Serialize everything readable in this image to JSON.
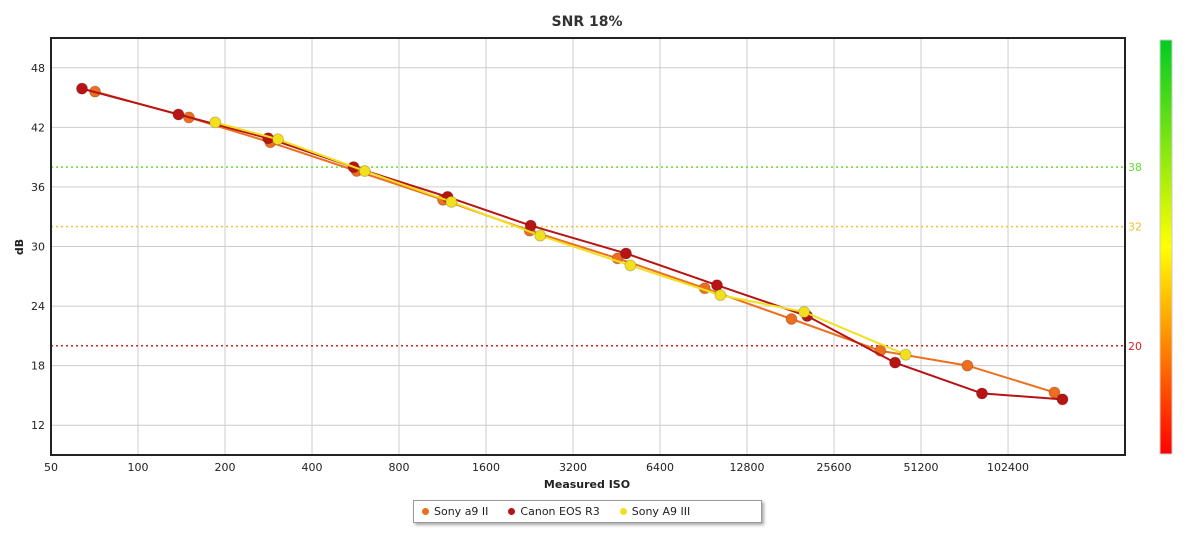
{
  "chart_data": {
    "type": "line",
    "title": "SNR 18%",
    "xlabel": "Measured ISO",
    "ylabel": "dB",
    "x_scale": "log2",
    "xlim": [
      50,
      260000
    ],
    "ylim": [
      9,
      51
    ],
    "x_ticks": [
      50,
      100,
      200,
      400,
      800,
      1600,
      3200,
      6400,
      12800,
      25600,
      51200,
      102400
    ],
    "x_tick_labels": [
      "50",
      "100",
      "200",
      "400",
      "800",
      "1600",
      "3200",
      "6400",
      "12800",
      "25600",
      "51200",
      "102400"
    ],
    "y_ticks": [
      12,
      18,
      24,
      30,
      36,
      42,
      48
    ],
    "y_tick_labels": [
      "12",
      "18",
      "24",
      "30",
      "36",
      "42",
      "48"
    ],
    "grid": true,
    "legend_position": "bottom-center",
    "reference_lines": [
      {
        "value": 38,
        "label": "38",
        "color": "#66dd33"
      },
      {
        "value": 32,
        "label": "32",
        "color": "#f0c030"
      },
      {
        "value": 20,
        "label": "20",
        "color": "#dd2222"
      }
    ],
    "color_scale": [
      "#00cc22",
      "#ffff00",
      "#ff0000"
    ],
    "series": [
      {
        "name": "Sony a9 II",
        "color": "#ec6f1f",
        "points": [
          [
            71,
            45.6
          ],
          [
            150,
            43.0
          ],
          [
            287,
            40.5
          ],
          [
            571,
            37.6
          ],
          [
            1136,
            34.7
          ],
          [
            2265,
            31.6
          ],
          [
            4563,
            28.8
          ],
          [
            9136,
            25.8
          ],
          [
            18238,
            22.7
          ],
          [
            37017,
            19.5
          ],
          [
            74062,
            18.0
          ],
          [
            148200,
            15.3
          ]
        ]
      },
      {
        "name": "Canon EOS R3",
        "color": "#b81414",
        "points": [
          [
            64,
            45.9
          ],
          [
            138,
            43.3
          ],
          [
            282,
            40.9
          ],
          [
            557,
            38.0
          ],
          [
            1178,
            35.0
          ],
          [
            2284,
            32.1
          ],
          [
            4879,
            29.3
          ],
          [
            10076,
            26.1
          ],
          [
            20669,
            23.0
          ],
          [
            41634,
            18.3
          ],
          [
            83200,
            15.2
          ],
          [
            158000,
            14.6
          ]
        ]
      },
      {
        "name": "Sony A9 III",
        "color": "#f2e01f",
        "points": [
          [
            185,
            42.5
          ],
          [
            305,
            40.8
          ],
          [
            609,
            37.6
          ],
          [
            1214,
            34.5
          ],
          [
            2464,
            31.1
          ],
          [
            5054,
            28.1
          ],
          [
            10350,
            25.1
          ],
          [
            20180,
            23.4
          ],
          [
            45300,
            19.1
          ]
        ]
      }
    ]
  }
}
